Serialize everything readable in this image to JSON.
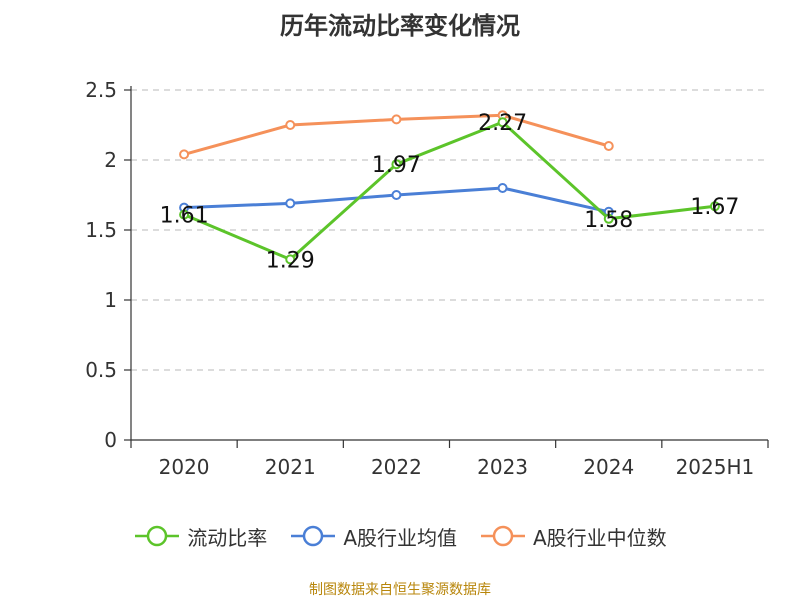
{
  "chart_data": {
    "type": "line",
    "title": "历年流动比率变化情况",
    "categories": [
      "2020",
      "2021",
      "2022",
      "2023",
      "2024",
      "2025H1"
    ],
    "yticks": [
      "0",
      "0.5",
      "1",
      "1.5",
      "2",
      "2.5"
    ],
    "ylim": [
      0,
      2.5
    ],
    "grid": true,
    "legend_position": "bottom",
    "series": [
      {
        "name": "流动比率",
        "color": "#5cc42a",
        "values": [
          1.61,
          1.29,
          1.97,
          2.27,
          1.58,
          1.67
        ],
        "labels": [
          "1.61",
          "1.29",
          "1.97",
          "2.27",
          "1.58",
          "1.67"
        ]
      },
      {
        "name": "A股行业均值",
        "color": "#4a7fd6",
        "values": [
          1.66,
          1.69,
          1.75,
          1.8,
          1.63,
          null
        ]
      },
      {
        "name": "A股行业中位数",
        "color": "#f5915a",
        "values": [
          2.04,
          2.25,
          2.29,
          2.32,
          2.1,
          null
        ]
      }
    ]
  },
  "source": "制图数据来自恒生聚源数据库"
}
